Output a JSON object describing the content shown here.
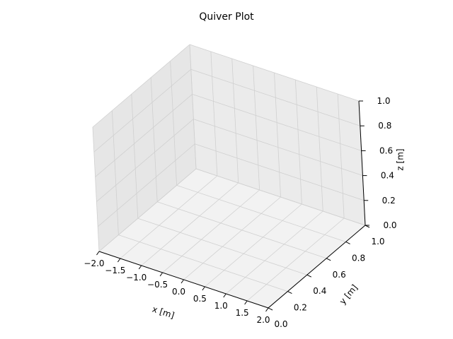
{
  "chart_data": {
    "type": "quiver",
    "title": "Quiver Plot",
    "xlabel": "x [m]",
    "ylabel": "y [m]",
    "zlabel": "z [m]",
    "xlim": [
      -2.0,
      2.0
    ],
    "ylim": [
      0.0,
      1.0
    ],
    "zlim": [
      0.0,
      1.0
    ],
    "x_ticks": [
      -2.0,
      -1.5,
      -1.0,
      -0.5,
      0.0,
      0.5,
      1.0,
      1.5,
      2.0
    ],
    "y_ticks": [
      0.0,
      0.2,
      0.4,
      0.6,
      0.8,
      1.0
    ],
    "z_ticks": [
      0.0,
      0.2,
      0.4,
      0.6,
      0.8,
      1.0
    ],
    "x_tick_labels": [
      "−2.0",
      "−1.5",
      "−1.0",
      "−0.5",
      "0.0",
      "0.5",
      "1.0",
      "1.5",
      "2.0"
    ],
    "y_tick_labels": [
      "0.0",
      "0.2",
      "0.4",
      "0.6",
      "0.8",
      "1.0"
    ],
    "z_tick_labels": [
      "0.0",
      "0.2",
      "0.4",
      "0.6",
      "0.8",
      "1.0"
    ],
    "grid": true,
    "series": [],
    "colors": {
      "background": "#ffffff",
      "pane_floor": "#f2f2f2",
      "pane_back": "#ebebeb",
      "pane_side": "#e6e6e6",
      "grid": "#d0d0d0",
      "axis": "#000000"
    }
  }
}
